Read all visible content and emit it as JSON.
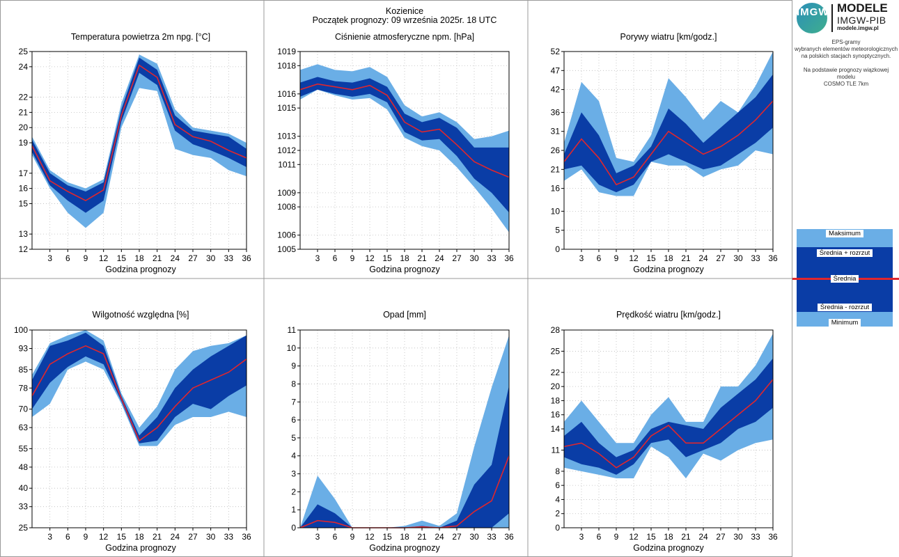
{
  "header": {
    "station": "Kozienice",
    "forecast_start": "Początek prognozy: 09 września 2025r. 18 UTC",
    "station_color": "#e0262d",
    "forecast_color": "#1a1aa0"
  },
  "colors": {
    "outer_band": "#6aaee6",
    "inner_band": "#0a3da6",
    "mean_line": "#e0262d"
  },
  "sidebar": {
    "logo_text": "IMGW",
    "brand_line1": "MODELE",
    "brand_line2": "IMGW-PIB",
    "brand_url": "modele.imgw.pl",
    "description": "EPS-gramy\nwybranych elementów meteorologicznych\nna polskich stacjach  synoptycznych.\n\nNa podstawie prognozy wiązkowej modelu\nCOSMO TLE 7km"
  },
  "legend": {
    "max": "Maksimum",
    "mean_plus": "Średnia + rozrzut",
    "mean": "Średnia",
    "mean_minus": "Średnia - rozrzut",
    "min": "Minimum"
  },
  "chart_data": [
    {
      "id": "temp",
      "type": "area",
      "title": "Temperatura powietrza 2m npg. [°C]",
      "xlabel": "Godzina prognozy",
      "x": [
        0,
        3,
        6,
        9,
        12,
        15,
        18,
        21,
        24,
        27,
        30,
        33,
        36
      ],
      "xticks": [
        3,
        6,
        9,
        12,
        15,
        18,
        21,
        24,
        27,
        30,
        33,
        36
      ],
      "ylim": [
        12,
        25
      ],
      "yticks": [
        12,
        13,
        15,
        16,
        17,
        19,
        20,
        21,
        22,
        24,
        25
      ],
      "max": [
        19.4,
        17.2,
        16.4,
        16.0,
        16.6,
        21.6,
        24.8,
        24.2,
        21.2,
        20.0,
        19.8,
        19.6,
        19.0
      ],
      "mean_plus": [
        19.2,
        17.0,
        16.2,
        15.8,
        16.4,
        21.2,
        24.6,
        23.8,
        20.8,
        19.8,
        19.6,
        19.4,
        18.6
      ],
      "mean": [
        18.8,
        16.5,
        15.8,
        15.2,
        15.9,
        20.8,
        24.1,
        23.3,
        20.2,
        19.4,
        19.1,
        18.5,
        18.0
      ],
      "mean_minus": [
        18.4,
        16.2,
        15.2,
        14.4,
        15.2,
        20.4,
        23.6,
        22.8,
        19.8,
        18.9,
        18.5,
        18.0,
        17.4
      ],
      "min": [
        18.2,
        16.0,
        14.4,
        13.4,
        14.4,
        20.0,
        22.6,
        22.4,
        18.6,
        18.2,
        18.0,
        17.2,
        16.8
      ]
    },
    {
      "id": "pressure",
      "type": "area",
      "title": "Ciśnienie atmosferyczne npm. [hPa]",
      "xlabel": "Godzina prognozy",
      "x": [
        0,
        3,
        6,
        9,
        12,
        15,
        18,
        21,
        24,
        27,
        30,
        33,
        36
      ],
      "xticks": [
        3,
        6,
        9,
        12,
        15,
        18,
        21,
        24,
        27,
        30,
        33,
        36
      ],
      "ylim": [
        1005,
        1019
      ],
      "yticks": [
        1005,
        1006,
        1008,
        1009,
        1011,
        1012,
        1013,
        1015,
        1016,
        1018,
        1019
      ],
      "max": [
        1017.7,
        1018.1,
        1017.7,
        1017.6,
        1017.9,
        1017.2,
        1015.2,
        1014.4,
        1014.7,
        1014.0,
        1012.8,
        1013.0,
        1013.4
      ],
      "mean_plus": [
        1016.8,
        1017.2,
        1016.9,
        1016.8,
        1017.1,
        1016.5,
        1014.6,
        1014.0,
        1014.3,
        1013.6,
        1012.2,
        1012.2,
        1012.2
      ],
      "mean": [
        1016.3,
        1016.7,
        1016.5,
        1016.3,
        1016.6,
        1015.9,
        1014.0,
        1013.3,
        1013.5,
        1012.4,
        1011.2,
        1010.6,
        1010.1
      ],
      "mean_minus": [
        1015.8,
        1016.3,
        1016.0,
        1015.8,
        1016.0,
        1015.4,
        1013.3,
        1012.7,
        1012.8,
        1011.6,
        1010.0,
        1009.0,
        1007.6
      ],
      "min": [
        1015.6,
        1016.3,
        1015.9,
        1015.6,
        1015.7,
        1014.9,
        1012.9,
        1012.3,
        1012.0,
        1010.8,
        1009.4,
        1007.9,
        1006.2
      ]
    },
    {
      "id": "gusts",
      "type": "area",
      "title": "Porywy wiatru [km/godz.]",
      "xlabel": "Godzina prognozy",
      "x": [
        0,
        3,
        6,
        9,
        12,
        15,
        18,
        21,
        24,
        27,
        30,
        33,
        36
      ],
      "xticks": [
        3,
        6,
        9,
        12,
        15,
        18,
        21,
        24,
        27,
        30,
        33,
        36
      ],
      "ylim": [
        0,
        52
      ],
      "yticks": [
        0,
        5,
        10,
        16,
        21,
        26,
        31,
        36,
        42,
        47,
        52
      ],
      "max": [
        28,
        44,
        39,
        24,
        23,
        30,
        45,
        40,
        34,
        39,
        36,
        43,
        52
      ],
      "mean_plus": [
        25,
        36,
        30,
        20,
        22,
        27,
        37,
        33,
        28,
        32,
        36,
        40,
        46
      ],
      "mean": [
        23,
        29,
        24,
        17,
        19,
        25,
        31,
        28,
        25,
        27,
        30,
        34,
        39
      ],
      "mean_minus": [
        21,
        22,
        17,
        15,
        17,
        23,
        25,
        23,
        21,
        22,
        25,
        28,
        32
      ],
      "min": [
        18,
        21,
        15,
        14,
        14,
        23,
        22,
        22,
        19,
        21,
        22,
        26,
        25
      ]
    },
    {
      "id": "humidity",
      "type": "area",
      "title": "Wilgotność względna [%]",
      "xlabel": "Godzina prognozy",
      "x": [
        0,
        3,
        6,
        9,
        12,
        15,
        18,
        21,
        24,
        27,
        30,
        33,
        36
      ],
      "xticks": [
        3,
        6,
        9,
        12,
        15,
        18,
        21,
        24,
        27,
        30,
        33,
        36
      ],
      "ylim": [
        25,
        100
      ],
      "yticks": [
        25,
        33,
        40,
        48,
        55,
        63,
        70,
        78,
        85,
        93,
        100
      ],
      "max": [
        83,
        95,
        98,
        100,
        96,
        76,
        63,
        71,
        85,
        92,
        94,
        95,
        98
      ],
      "mean_plus": [
        81,
        94,
        96,
        99,
        94,
        75,
        60,
        67,
        78,
        85,
        90,
        94,
        98
      ],
      "mean": [
        75,
        87,
        91,
        94,
        91,
        74,
        58,
        63,
        71,
        78,
        81,
        84,
        89
      ],
      "mean_minus": [
        70,
        80,
        86,
        90,
        87,
        73,
        57,
        58,
        67,
        72,
        70,
        75,
        79
      ],
      "min": [
        67,
        72,
        85,
        88,
        85,
        72,
        56,
        56,
        64,
        67,
        67,
        69,
        67
      ]
    },
    {
      "id": "precip",
      "type": "area",
      "title": "Opad [mm]",
      "xlabel": "Godzina prognozy",
      "x": [
        0,
        3,
        6,
        9,
        12,
        15,
        18,
        21,
        24,
        27,
        30,
        33,
        36
      ],
      "xticks": [
        3,
        6,
        9,
        12,
        15,
        18,
        21,
        24,
        27,
        30,
        33,
        36
      ],
      "ylim": [
        0,
        11
      ],
      "yticks": [
        0,
        1,
        2,
        3,
        4,
        5,
        6,
        7,
        8,
        9,
        10,
        11
      ],
      "max": [
        0,
        2.9,
        1.6,
        0,
        0,
        0,
        0.1,
        0.4,
        0.1,
        0.8,
        4.5,
        7.8,
        10.7
      ],
      "mean_plus": [
        0,
        1.3,
        0.8,
        0,
        0,
        0,
        0,
        0.1,
        0,
        0.4,
        2.4,
        3.5,
        7.9
      ],
      "mean": [
        0,
        0.4,
        0.3,
        0,
        0,
        0,
        0,
        0.05,
        0,
        0.1,
        0.9,
        1.5,
        4.0
      ],
      "mean_minus": [
        0,
        0,
        0,
        0,
        0,
        0,
        0,
        0,
        0,
        0,
        0,
        0,
        0.8
      ],
      "min": [
        0,
        0,
        0,
        0,
        0,
        0,
        0,
        0,
        0,
        0,
        0,
        0,
        0
      ]
    },
    {
      "id": "wind",
      "type": "area",
      "title": "Prędkość wiatru [km/godz.]",
      "xlabel": "Godzina prognozy",
      "x": [
        0,
        3,
        6,
        9,
        12,
        15,
        18,
        21,
        24,
        27,
        30,
        33,
        36
      ],
      "xticks": [
        3,
        6,
        9,
        12,
        15,
        18,
        21,
        24,
        27,
        30,
        33,
        36
      ],
      "ylim": [
        0,
        28
      ],
      "yticks": [
        0,
        2,
        4,
        6,
        8,
        11,
        14,
        16,
        18,
        20,
        22,
        25,
        28
      ],
      "max": [
        15,
        18,
        15,
        12,
        12,
        16,
        18.5,
        15,
        15,
        20,
        20,
        23,
        27.5
      ],
      "mean_plus": [
        13,
        15,
        12,
        10,
        11,
        14,
        15,
        14.5,
        14,
        17,
        19,
        21,
        24
      ],
      "mean": [
        11.5,
        12,
        10.5,
        8.5,
        10,
        13,
        14.5,
        12,
        12,
        14,
        16,
        18,
        21
      ],
      "mean_minus": [
        10,
        9,
        8.5,
        7.5,
        9,
        12,
        12.5,
        10,
        11,
        12,
        14,
        15,
        17
      ],
      "min": [
        8.5,
        8,
        7.5,
        7,
        7,
        11.5,
        10,
        7,
        10.5,
        9.5,
        11,
        12,
        12.5
      ]
    }
  ]
}
